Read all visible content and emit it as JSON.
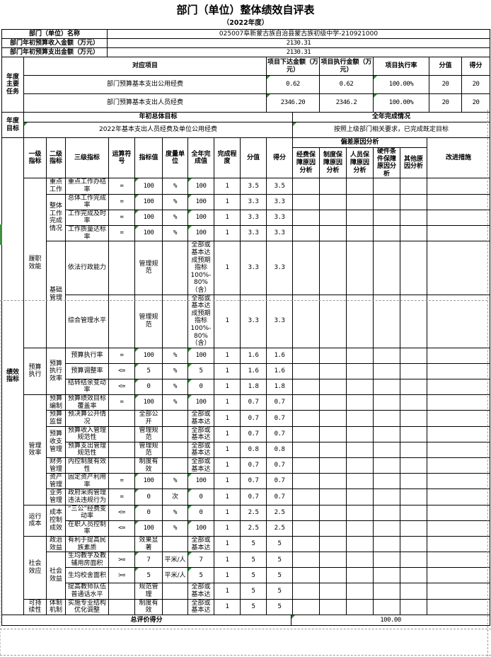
{
  "title": "部门（单位）整体绩效自评表",
  "subtitle": "（2022年度）",
  "info": {
    "rows": [
      {
        "label": "部门（单位）名称",
        "value": "025007阜新蒙古族自治县蒙古族初级中学-210921000"
      },
      {
        "label": "部门年初预算收入金额（万元）",
        "value": "2130.31"
      },
      {
        "label": "部门年初预算支出金额（万元）",
        "value": "2130.31"
      }
    ]
  },
  "tasks": {
    "section_label": "年度主要任务",
    "headers": {
      "project": "对应项目",
      "issued": "项目下达金额（万元）",
      "executed": "项目执行金额（万元）",
      "rate": "项目执行率",
      "max": "分值",
      "score": "得分"
    },
    "rows": [
      {
        "project": "部门预算基本支出公用经费",
        "issued": "0.62",
        "executed": "0.62",
        "rate": "100.00%",
        "max": "20",
        "score": "20"
      },
      {
        "project": "部门预算基本支出人员经费",
        "issued": "2346.20",
        "executed": "2346.2",
        "rate": "100.00%",
        "max": "20",
        "score": "20"
      }
    ]
  },
  "goals": {
    "section_label": "年度目标",
    "initial_header": "年初总体目标",
    "completion_header": "全年完成情况",
    "initial": "2022年基本支出人员经费及单位公用经费",
    "completion": "按照上级部门相关要求，已完成既定目标"
  },
  "indicators": {
    "section_label": "绩效指标",
    "headers": [
      "一级指标",
      "二级指标",
      "三级指标",
      "运算符号",
      "指标值",
      "度量单位",
      "全年完成值",
      "完成程度",
      "分值",
      "得分"
    ],
    "deviation_header": "偏差原因分析",
    "reason_headers": [
      "经费保障原因分析",
      "制度保障原因分析",
      "人员保障原因分析",
      "硬件条件保障原因分析",
      "其他原因分析"
    ],
    "improve_header": "改进措施",
    "rows": [
      {
        "l1": "履职效能",
        "l1span": 6,
        "l2": "重点工作",
        "l2span": 1,
        "l3": "重点工作办结率",
        "op": "=",
        "target": "100",
        "unit": "%",
        "actual": "100",
        "degree": "1",
        "max": "3.5",
        "score": "3.5",
        "mark": true
      },
      {
        "l2": "整体工作完成情况",
        "l2span": 3,
        "l3": "总体工作完成率",
        "op": "=",
        "target": "100",
        "unit": "%",
        "actual": "100",
        "degree": "1",
        "max": "3.3",
        "score": "3.3",
        "mark": true
      },
      {
        "l3": "工作完成及时率",
        "op": "=",
        "target": "100",
        "unit": "%",
        "actual": "100",
        "degree": "1",
        "max": "3.3",
        "score": "3.3",
        "mark": true
      },
      {
        "l3": "工作质量达标率",
        "op": "=",
        "target": "100",
        "unit": "%",
        "actual": "100",
        "degree": "1",
        "max": "3.3",
        "score": "3.3",
        "mark": true
      },
      {
        "l2": "基础管理",
        "l2span": 2,
        "l3": "依法行政能力",
        "op": "",
        "target": "管理规范",
        "unit": "",
        "actual": "全部或基本达成预期指标100%-80%（含）",
        "degree": "1",
        "max": "3.3",
        "score": "3.3",
        "tall": true
      },
      {
        "l3": "综合管理水平",
        "op": "",
        "target": "管理规范",
        "unit": "",
        "actual": "全部或基本达成预期指标100%-80%（含）",
        "degree": "1",
        "max": "3.3",
        "score": "3.3",
        "tall": true
      },
      {
        "l1": "预算执行",
        "l1span": 3,
        "l2": "预算执行效率",
        "l2span": 3,
        "l3": "预算执行率",
        "op": "=",
        "target": "100",
        "unit": "%",
        "actual": "100",
        "degree": "1",
        "max": "1.6",
        "score": "1.6",
        "mark": true
      },
      {
        "l3": "预算调整率",
        "op": "<=",
        "target": "5",
        "unit": "%",
        "actual": "5",
        "degree": "1",
        "max": "1.6",
        "score": "1.6",
        "mark": true
      },
      {
        "l3": "结转结余变动率",
        "op": "<=",
        "target": "0",
        "unit": "%",
        "actual": "0",
        "degree": "1",
        "max": "1.8",
        "score": "1.8",
        "mark": true
      },
      {
        "l1": "管理效率",
        "l1span": 7,
        "l2": "预算编制",
        "l2span": 1,
        "l3": "预算绩效目标覆盖率",
        "op": "=",
        "target": "100",
        "unit": "%",
        "actual": "100",
        "degree": "1",
        "max": "0.7",
        "score": "0.7",
        "mark": true
      },
      {
        "l2": "预算监督",
        "l2span": 1,
        "l3": "预决算公开情况",
        "op": "",
        "target": "全部公开",
        "unit": "",
        "actual": "全部或基本达",
        "degree": "1",
        "max": "0.7",
        "score": "0.7"
      },
      {
        "l2": "预算收支管理",
        "l2span": 2,
        "l3": "预算收入管理规范性",
        "op": "",
        "target": "管理规范",
        "unit": "",
        "actual": "全部或基本达",
        "degree": "1",
        "max": "0.7",
        "score": "0.7"
      },
      {
        "l3": "预算支出管理规范性",
        "op": "",
        "target": "管理规范",
        "unit": "",
        "actual": "全部或基本达",
        "degree": "1",
        "max": "0.8",
        "score": "0.8"
      },
      {
        "l2": "财务管理",
        "l2span": 1,
        "l3": "内控制度有效性",
        "op": "",
        "target": "制度有效",
        "unit": "",
        "actual": "全部或基本达",
        "degree": "1",
        "max": "0.7",
        "score": "0.7"
      },
      {
        "l2": "资产管理",
        "l2span": 1,
        "l3": "固定资产利用率",
        "op": "=",
        "target": "100",
        "unit": "%",
        "actual": "100",
        "degree": "1",
        "max": "0.7",
        "score": "0.7",
        "mark": true
      },
      {
        "l2": "业务管理",
        "l2span": 1,
        "l3": "政府采购管理违法违规行为",
        "op": "=",
        "target": "0",
        "unit": "次",
        "actual": "0",
        "degree": "1",
        "max": "0.7",
        "score": "0.7",
        "mark": true
      },
      {
        "l1": "运行成本",
        "l1span": 2,
        "l2": "成本控制成效",
        "l2span": 2,
        "l3": "“三公”经费变动率",
        "op": "<=",
        "target": "0",
        "unit": "%",
        "actual": "0",
        "degree": "1",
        "max": "2.5",
        "score": "2.5",
        "mark": true
      },
      {
        "l3": "在职人员控制率",
        "op": "<=",
        "target": "100",
        "unit": "%",
        "actual": "100",
        "degree": "1",
        "max": "2.5",
        "score": "2.5",
        "mark": true
      },
      {
        "l1": "社会效应",
        "l1span": 4,
        "l2": "政治效益",
        "l2span": 1,
        "l3": "有利于提高民族素质",
        "op": "",
        "target": "效果显著",
        "unit": "",
        "actual": "全部或基本达",
        "degree": "1",
        "max": "5",
        "score": "5"
      },
      {
        "l2": "社会效益",
        "l2span": 3,
        "l3": "生均教学及教辅用房面积",
        "op": ">=",
        "target": "7",
        "unit": "平米/人",
        "actual": "7",
        "degree": "1",
        "max": "5",
        "score": "5",
        "mark": true
      },
      {
        "l3": "生均校舍面积",
        "op": ">=",
        "target": "5",
        "unit": "平米/人",
        "actual": "5",
        "degree": "1",
        "max": "5",
        "score": "5",
        "mark": true
      },
      {
        "l3": "提高教师队伍普通话水平",
        "op": "",
        "target": "规范管理",
        "unit": "",
        "actual": "全部或基本达",
        "degree": "1",
        "max": "5",
        "score": "5"
      },
      {
        "l1": "可持续性",
        "l1span": 1,
        "l2": "体制机制",
        "l2span": 1,
        "l3": "实施专业结构优化调整",
        "op": "",
        "target": "制度有效",
        "unit": "",
        "actual": "全部或基本达",
        "degree": "1",
        "max": "5",
        "score": "5"
      }
    ]
  },
  "footer": {
    "label": "总评价得分",
    "value": "100.00"
  },
  "colors": {
    "grid": "#000000",
    "marker_green": "#2e8b2e",
    "pagebreak_dash": "#999999",
    "print_edge_green": "#3f9142"
  }
}
